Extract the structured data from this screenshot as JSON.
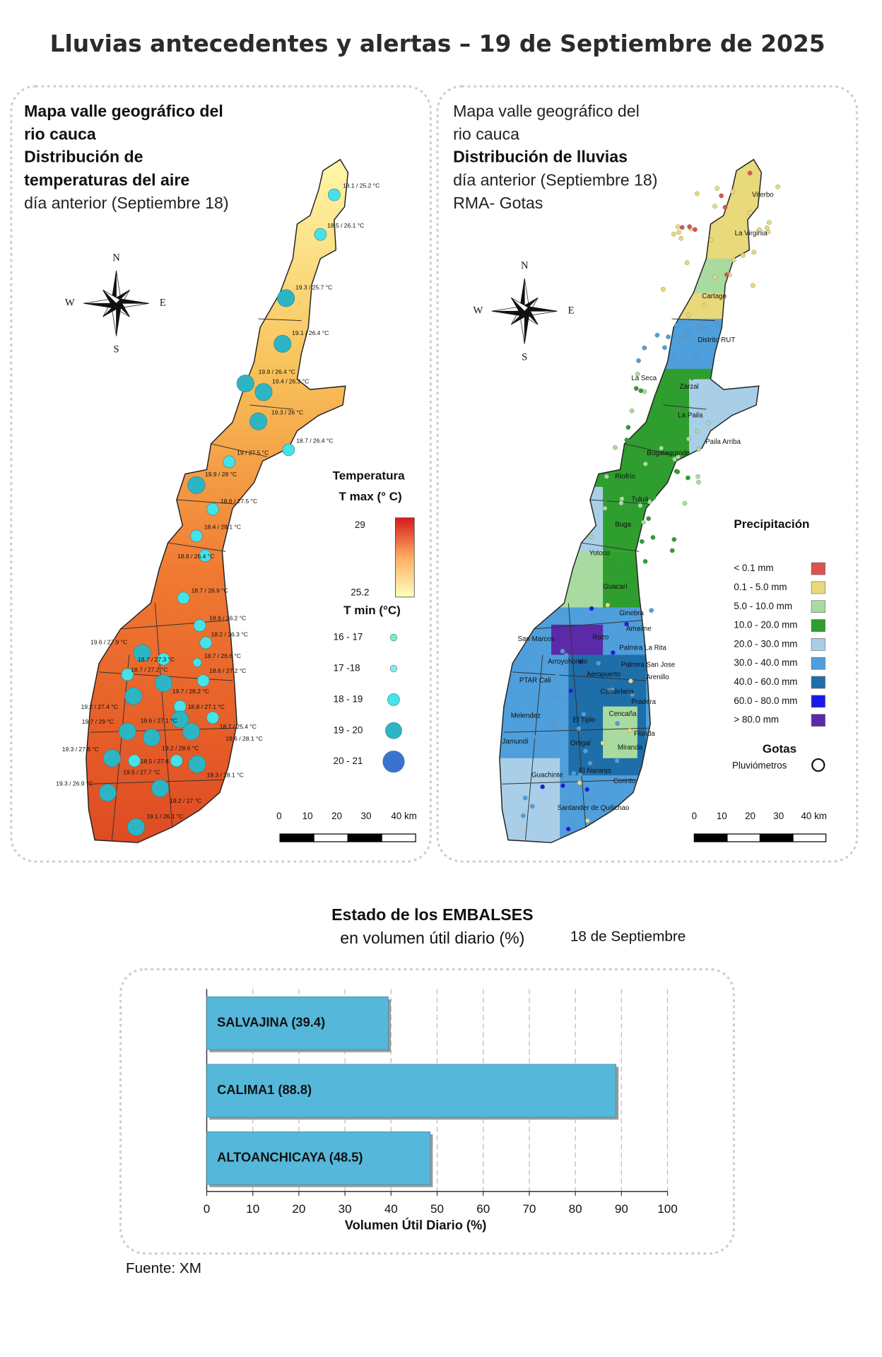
{
  "title": "Lluvias antecedentes y alertas – 19 de Septiembre de 2025",
  "temperature_map": {
    "heading": [
      "Mapa valle geográfico del",
      "rio cauca",
      "Distribución de",
      "temperaturas del aire",
      "día anterior (Septiembre 18)"
    ],
    "compass": [
      "N",
      "S",
      "W",
      "E"
    ],
    "stations": [
      "18.1 / 25.2 °C",
      "18.5 / 26.1 °C",
      "19.3 / 25.7 °C",
      "19.1 / 26.4 °C",
      "19.9 / 26.4 °C",
      "19.4 / 26.3 °C",
      "19.3 / 26 °C",
      "18.7 / 26.4 °C",
      "19 / 27.5 °C",
      "19.9 / 28 °C",
      "18.6 / 27.5 °C",
      "18.4 / 28.1 °C",
      "18.8 / 26.4 °C",
      "18.7 / 26.9 °C",
      "18.9 / 26.2 °C",
      "18.2 / 26.3 °C",
      "19.6 / 27.9 °C",
      "18.7 / 26.6 °C",
      "18.7 / 27.3 °C",
      "18.7 / 27.2 °C",
      "18.6 / 27.2 °C",
      "19.7 / 28.2 °C",
      "18.8 / 27.1 °C",
      "19.2 / 27.4 °C",
      "19.6 / 27.1 °C",
      "18.7 / 25.4 °C",
      "19.7 / 29 °C",
      "19.6 / 28.1 °C",
      "19.3 / 27.8 °C",
      "19.2 / 28.6 °C",
      "18.5 / 27.6 °C",
      "19.5 / 27.7 °C",
      "19.3 / 28.1 °C",
      "19.3 / 26.9 °C",
      "19.2 / 27 °C",
      "19.1 / 26.1 °C"
    ],
    "tmax_title": [
      "Temperatura",
      "T max (° C)"
    ],
    "tmax_high": 29,
    "tmax_low": 25.2,
    "tmax_colors": [
      "#d7191c",
      "#fdae61",
      "#ffffbf"
    ],
    "tmin_title": "T min (°C)",
    "tmin_classes": [
      {
        "label": "16 - 17",
        "color": "#86e8c6"
      },
      {
        "label": "17 -18",
        "color": "#8fe6ea"
      },
      {
        "label": "18 - 19",
        "color": "#45e3e8"
      },
      {
        "label": "19 - 20",
        "color": "#2db5c3"
      },
      {
        "label": "20 - 21",
        "color": "#3a72d0"
      }
    ],
    "scale": [
      "0",
      "10",
      "20",
      "30",
      "40 km"
    ]
  },
  "rain_map": {
    "heading": [
      "Mapa valle geográfico del",
      "rio cauca",
      "Distribución de lluvias",
      "día anterior (Septiembre 18)",
      "RMA- Gotas"
    ],
    "compass": [
      "N",
      "S",
      "W",
      "E"
    ],
    "places": [
      "Viterbo",
      "La Virginia",
      "Cartago",
      "Distrito RUT",
      "La Seca",
      "Zarzal",
      "La Paila",
      "Paila Arriba",
      "Bugalagrande",
      "Riofrío",
      "Tuluá",
      "Buga",
      "Yotoco",
      "Guacarí",
      "Ginebra",
      "Amaime",
      "Rozo",
      "Palmira La Rita",
      "San Marcos",
      "Arroyohondo",
      "Palmira San Jose",
      "Aeropuerto",
      "Arenillo",
      "PTAR Cali",
      "Candelaria",
      "Pradera",
      "Melendez",
      "El Tiplo",
      "Cencaña",
      "Florida",
      "Jamundi",
      "Ortigal",
      "Miranda",
      "El Naranjo",
      "Guachinte",
      "Corinto",
      "Santander de Quilichao"
    ],
    "legend_title": "Precipitación",
    "legend": [
      {
        "label": "< 0.1 mm",
        "color": "#d9534f"
      },
      {
        "label": "0.1 - 5.0 mm",
        "color": "#e8d97a"
      },
      {
        "label": "5.0 - 10.0 mm",
        "color": "#a9dba0"
      },
      {
        "label": "10.0 - 20.0 mm",
        "color": "#2e9e2e"
      },
      {
        "label": "20.0 - 30.0 mm",
        "color": "#a9cfe8"
      },
      {
        "label": "30.0 - 40.0 mm",
        "color": "#4e9fdc"
      },
      {
        "label": "40.0 - 60.0 mm",
        "color": "#1e6eaa"
      },
      {
        "label": "60.0 - 80.0 mm",
        "color": "#1a1ae8"
      },
      {
        "label": "> 80.0 mm",
        "color": "#5b2aa8"
      }
    ],
    "gauges_title": "Gotas",
    "gauges_label": "Pluviómetros",
    "scale": [
      "0",
      "10",
      "20",
      "30",
      "40 km"
    ]
  },
  "reservoirs": {
    "title": "Estado de los EMBALSES",
    "subtitle": "en volumen útil diario (%)",
    "date": "18 de Septiembre"
  },
  "chart_data": {
    "type": "bar",
    "orientation": "horizontal",
    "categories": [
      "SALVAJINA (39.4)",
      "CALIMA1 (88.8)",
      "ALTOANCHICAYA (48.5)"
    ],
    "values": [
      39.4,
      88.8,
      48.5
    ],
    "color": "#55b8da",
    "xlabel": "Volumen Útil Diario (%)",
    "xlim": [
      0,
      100
    ],
    "xticks": [
      0,
      10,
      20,
      30,
      40,
      50,
      60,
      70,
      80,
      90,
      100
    ],
    "grid": true
  },
  "source": "Fuente: XM"
}
